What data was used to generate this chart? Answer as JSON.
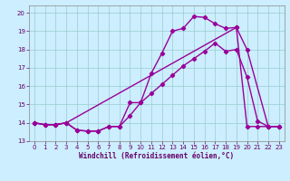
{
  "line1_x": [
    0,
    1,
    2,
    3,
    4,
    5,
    6,
    7,
    8,
    9,
    10,
    11,
    12,
    13,
    14,
    15,
    16,
    17,
    18,
    19,
    20,
    21,
    22,
    23
  ],
  "line1_y": [
    14.0,
    13.9,
    13.9,
    14.0,
    13.6,
    13.55,
    13.55,
    13.8,
    13.8,
    15.1,
    15.1,
    16.7,
    17.8,
    19.0,
    19.15,
    19.8,
    19.75,
    19.4,
    19.15,
    19.2,
    13.8,
    13.8,
    13.8,
    13.8
  ],
  "line2_x": [
    0,
    1,
    2,
    3,
    4,
    5,
    6,
    7,
    8,
    9,
    10,
    11,
    12,
    13,
    14,
    15,
    16,
    17,
    18,
    19,
    20,
    21,
    22,
    23
  ],
  "line2_y": [
    14.0,
    13.9,
    13.9,
    14.0,
    13.6,
    13.55,
    13.55,
    13.8,
    13.8,
    14.4,
    15.1,
    15.6,
    16.1,
    16.6,
    17.1,
    17.5,
    17.9,
    18.35,
    17.9,
    18.0,
    16.5,
    14.1,
    13.8,
    13.8
  ],
  "line3_x": [
    0,
    1,
    2,
    3,
    19,
    20,
    22,
    23
  ],
  "line3_y": [
    14.0,
    13.9,
    13.9,
    14.0,
    19.2,
    18.0,
    13.8,
    13.8
  ],
  "color": "#990099",
  "bg_color": "#cceeff",
  "grid_color": "#99cccc",
  "xlabel": "Windchill (Refroidissement éolien,°C)",
  "xlim": [
    -0.5,
    23.5
  ],
  "ylim": [
    13.0,
    20.4
  ],
  "yticks": [
    13,
    14,
    15,
    16,
    17,
    18,
    19,
    20
  ],
  "xticks": [
    0,
    1,
    2,
    3,
    4,
    5,
    6,
    7,
    8,
    9,
    10,
    11,
    12,
    13,
    14,
    15,
    16,
    17,
    18,
    19,
    20,
    21,
    22,
    23
  ],
  "marker": "D",
  "markersize": 2.2,
  "linewidth": 1.0
}
